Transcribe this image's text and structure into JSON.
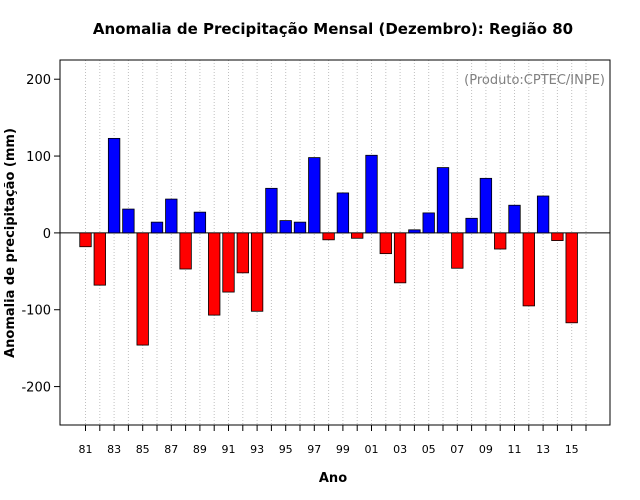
{
  "chart_data": {
    "type": "bar",
    "title": "Anomalia de Precipitação Mensal (Dezembro): Região 80",
    "annotation": "(Produto:CPTEC/INPE)",
    "xlabel": "Ano",
    "ylabel": "Anomalia de precipitação (mm)",
    "ylim": [
      -250,
      225
    ],
    "yticks": [
      -200,
      -100,
      0,
      100,
      200
    ],
    "grid": true,
    "categories": [
      "1981",
      "1982",
      "1983",
      "1984",
      "1985",
      "1986",
      "1987",
      "1988",
      "1989",
      "1990",
      "1991",
      "1992",
      "1993",
      "1994",
      "1995",
      "1996",
      "1997",
      "1998",
      "1999",
      "2000",
      "2001",
      "2002",
      "2003",
      "2004",
      "2005",
      "2006",
      "2007",
      "2008",
      "2009",
      "2010",
      "2011",
      "2012",
      "2013",
      "2014",
      "2015"
    ],
    "tick_labels": [
      "81",
      "83",
      "85",
      "87",
      "89",
      "91",
      "93",
      "95",
      "97",
      "99",
      "01",
      "03",
      "05",
      "07",
      "09",
      "11",
      "13",
      "15"
    ],
    "values": [
      -18,
      -68,
      123,
      31,
      -146,
      14,
      44,
      -47,
      27,
      -107,
      -77,
      -52,
      -102,
      58,
      16,
      14,
      98,
      -9,
      52,
      -7,
      101,
      -27,
      -65,
      4,
      26,
      85,
      -46,
      19,
      71,
      -21,
      36,
      -95,
      48,
      -10,
      -117
    ],
    "colors": {
      "positive": "#0000ff",
      "negative": "#ff0000",
      "grid": "#c0c0c0",
      "axis": "#000000"
    }
  }
}
